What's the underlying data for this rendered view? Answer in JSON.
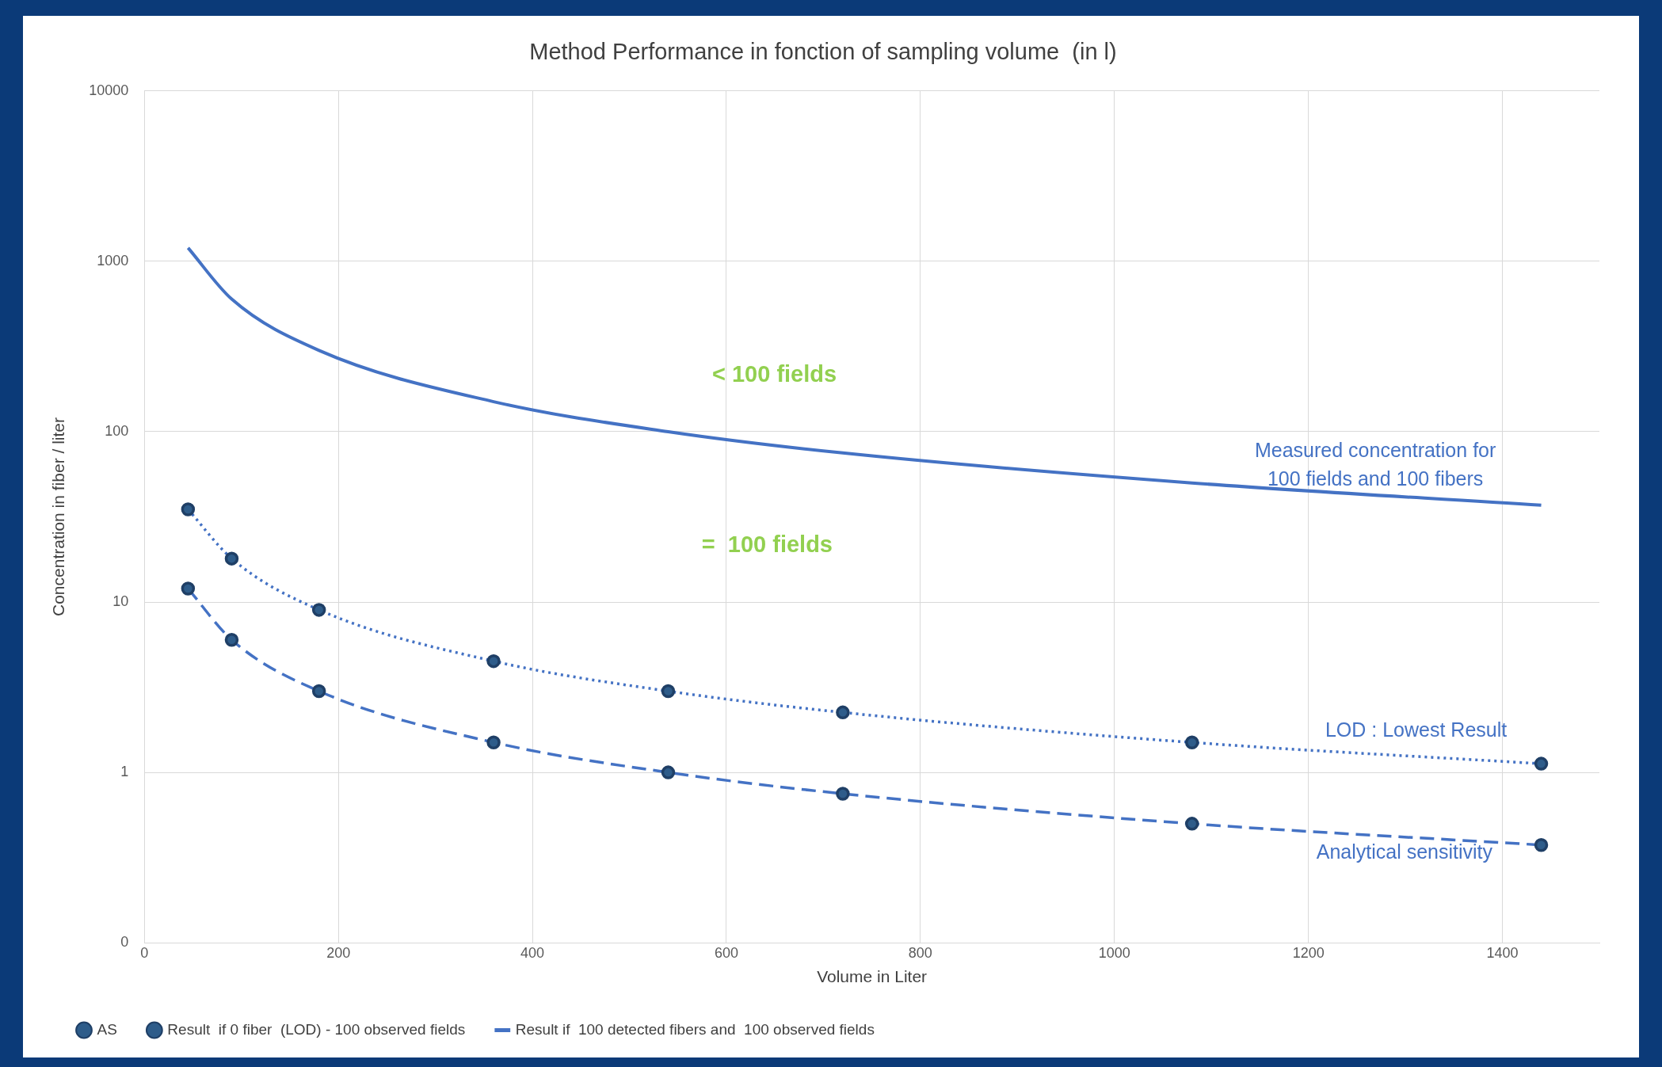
{
  "chart_data": {
    "type": "line",
    "title": "Method Performance in fonction of sampling volume  (in l)",
    "xlabel": "Volume in Liter",
    "ylabel": "Concentration in fiber / liter",
    "x": [
      45,
      90,
      180,
      360,
      540,
      720,
      1080,
      1440
    ],
    "series": [
      {
        "name": "AS",
        "color": "#4472c4",
        "values": [
          12,
          6,
          3,
          1.5,
          1,
          0.75,
          0.5,
          0.375
        ],
        "marker": "circle",
        "line_style": "dashed"
      },
      {
        "name": "Result  if 0 fiber  (LOD) - 100 observed fields",
        "color": "#4472c4",
        "values": [
          35,
          18,
          9,
          4.5,
          3,
          2.25,
          1.5,
          1.125
        ],
        "marker": "circle",
        "line_style": "dotted"
      },
      {
        "name": "Result if  100 detected fibers and  100 observed fields",
        "color": "#4472c4",
        "values": [
          1200,
          600,
          300,
          150,
          100,
          75,
          50,
          37
        ],
        "marker": "none",
        "line_style": "solid"
      }
    ],
    "log": "y",
    "xlim": [
      0,
      1500
    ],
    "xticks": [
      0,
      200,
      400,
      600,
      800,
      1000,
      1200,
      1400
    ],
    "ylim": [
      0.1,
      10000
    ],
    "yticks": [
      {
        "value": 0.1,
        "label": "0"
      },
      1,
      10,
      100,
      1000,
      10000
    ],
    "grid": true,
    "legend": "bottom",
    "annotations": [
      "< 100 fields",
      "=  100 fields",
      "Measured concentration for\n100 fields and 100 fibers",
      "LOD : Lowest Result",
      "Analytical sensitivity"
    ]
  }
}
